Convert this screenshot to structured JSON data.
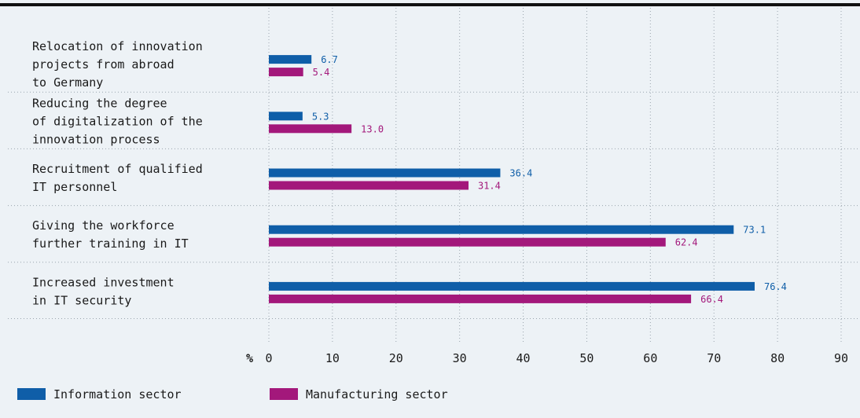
{
  "chart_data": {
    "type": "bar",
    "orientation": "horizontal",
    "categories": [
      [
        "Relocation of innovation",
        "projects from abroad",
        "to Germany"
      ],
      [
        "Reducing the degree",
        "of digitalization of the",
        "innovation process"
      ],
      [
        "Recruitment of qualified",
        "IT personnel"
      ],
      [
        "Giving the workforce",
        "further training in IT"
      ],
      [
        "Increased investment",
        "in IT security"
      ]
    ],
    "series": [
      {
        "name": "Information sector",
        "color": "#0f5ea8",
        "values": [
          6.7,
          5.3,
          36.4,
          73.1,
          76.4
        ],
        "labels": [
          "6.7",
          "5.3",
          "36.4",
          "73.1",
          "76.4"
        ]
      },
      {
        "name": "Manufacturing sector",
        "color": "#a3187b",
        "values": [
          5.4,
          13.0,
          31.4,
          62.4,
          66.4
        ],
        "labels": [
          "5.4",
          "13.0",
          "31.4",
          "62.4",
          "66.4"
        ]
      }
    ],
    "xlabel": "%",
    "xlim": [
      0,
      90
    ],
    "xticks": [
      0,
      10,
      20,
      30,
      40,
      50,
      60,
      70,
      80,
      90
    ],
    "grid": true,
    "legend_position": "bottom-left"
  }
}
